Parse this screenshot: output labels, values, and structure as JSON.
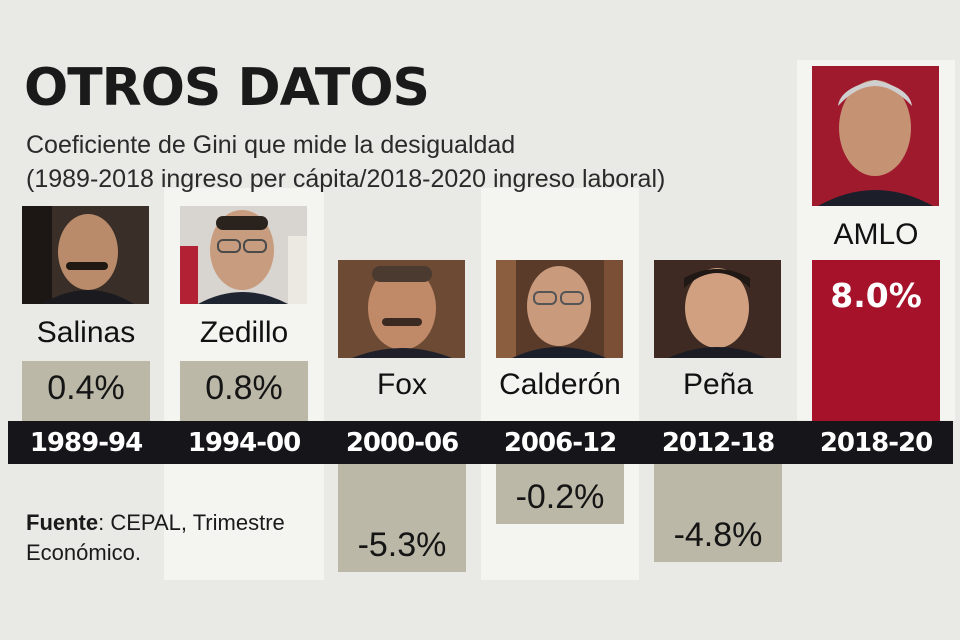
{
  "title": "OTROS DATOS",
  "subtitle_line1": "Coeficiente de Gini que mide la desigualdad",
  "subtitle_line2": "(1989-2018 ingreso per cápita/2018-2020 ingreso laboral)",
  "source_label": "Fuente",
  "source_text": ": CEPAL, Trimestre Económico.",
  "colors": {
    "neutral_bar": "#bbb8a8",
    "highlight_bar": "#a5122a",
    "band": "#16161a",
    "background": "#e9e9e5",
    "column": "#f4f4f1"
  },
  "chart_data": {
    "type": "bar",
    "title": "OTROS DATOS",
    "categories": [
      "1989-94",
      "1994-00",
      "2000-06",
      "2006-12",
      "2012-18",
      "2018-20"
    ],
    "presidents": [
      "Salinas",
      "Zedillo",
      "Fox",
      "Calderón",
      "Peña",
      "AMLO"
    ],
    "values": [
      0.4,
      0.8,
      -5.3,
      -0.2,
      -4.8,
      8.0
    ],
    "value_labels": [
      "0.4%",
      "0.8%",
      "-5.3%",
      "-0.2%",
      "-4.8%",
      "8.0%"
    ],
    "unit": "%",
    "highlight": "AMLO",
    "grid": false
  }
}
